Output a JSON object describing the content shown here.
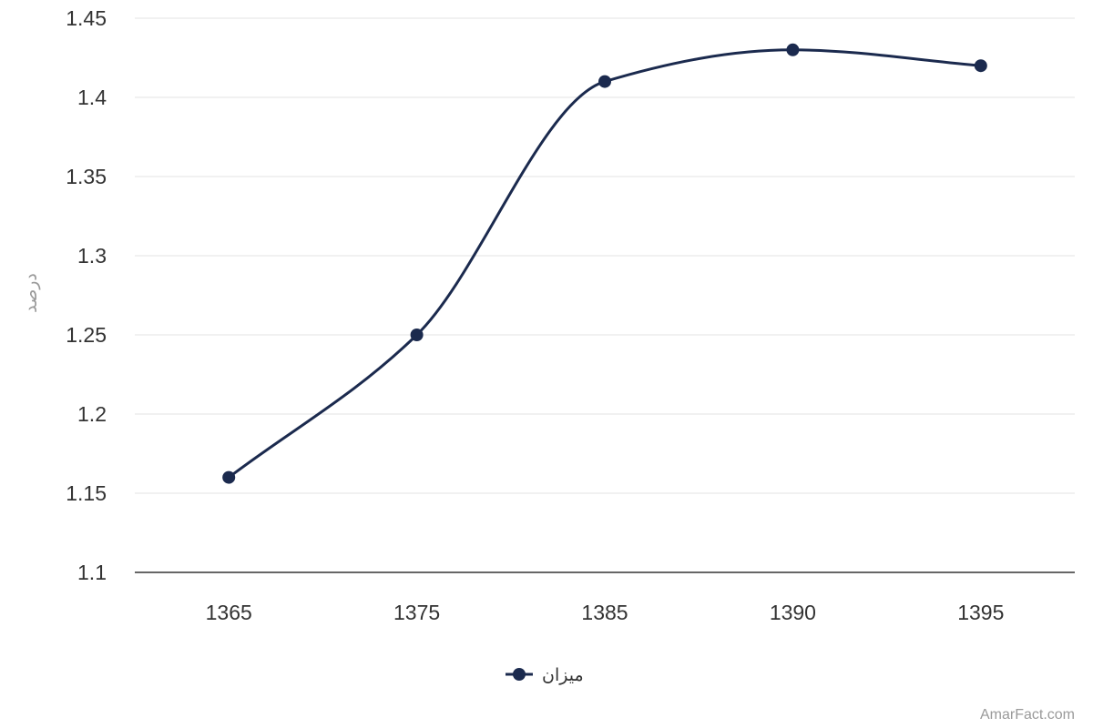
{
  "chart_data": {
    "type": "line",
    "categories": [
      "1365",
      "1375",
      "1385",
      "1390",
      "1395"
    ],
    "series": [
      {
        "name": "میزان",
        "values": [
          1.16,
          1.25,
          1.41,
          1.43,
          1.42
        ]
      }
    ],
    "title": "",
    "xlabel": "",
    "ylabel": "درصد",
    "ylim": [
      1.1,
      1.45
    ],
    "yticks": [
      "1.1",
      "1.15",
      "1.2",
      "1.25",
      "1.3",
      "1.35",
      "1.4",
      "1.45"
    ],
    "grid": true,
    "legend_position": "bottom",
    "colors": {
      "series": "#1b2a4e",
      "grid": "#e3e3e3",
      "axis": "#333333"
    },
    "credit": "AmarFact.com"
  }
}
